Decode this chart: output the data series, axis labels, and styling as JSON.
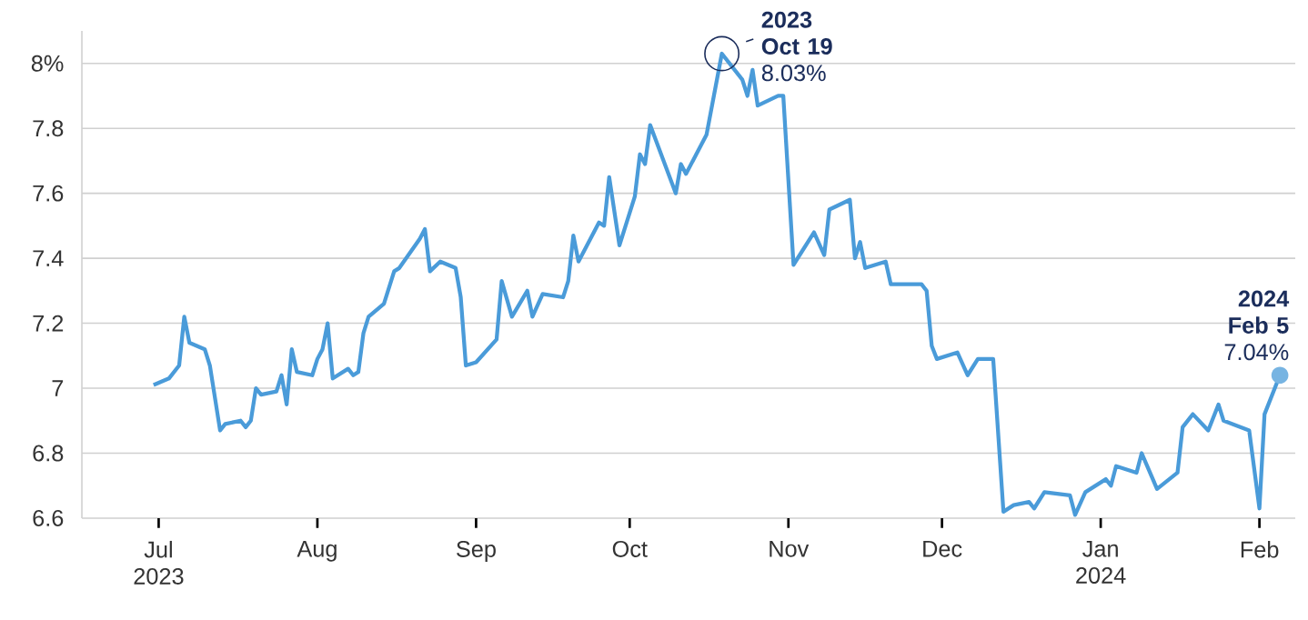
{
  "chart_data": {
    "type": "line",
    "color": "#4a9bd9",
    "line_style": "solid",
    "marker": "none",
    "grid": "y",
    "x": [
      "2023-06-30",
      "2023-07-03",
      "2023-07-05",
      "2023-07-06",
      "2023-07-07",
      "2023-07-10",
      "2023-07-11",
      "2023-07-13",
      "2023-07-14",
      "2023-07-17",
      "2023-07-18",
      "2023-07-19",
      "2023-07-20",
      "2023-07-21",
      "2023-07-24",
      "2023-07-25",
      "2023-07-26",
      "2023-07-27",
      "2023-07-28",
      "2023-07-31",
      "2023-08-01",
      "2023-08-02",
      "2023-08-03",
      "2023-08-04",
      "2023-08-07",
      "2023-08-08",
      "2023-08-09",
      "2023-08-10",
      "2023-08-11",
      "2023-08-14",
      "2023-08-16",
      "2023-08-17",
      "2023-08-21",
      "2023-08-22",
      "2023-08-23",
      "2023-08-25",
      "2023-08-28",
      "2023-08-29",
      "2023-08-30",
      "2023-09-01",
      "2023-09-05",
      "2023-09-06",
      "2023-09-08",
      "2023-09-11",
      "2023-09-12",
      "2023-09-14",
      "2023-09-18",
      "2023-09-19",
      "2023-09-20",
      "2023-09-21",
      "2023-09-25",
      "2023-09-26",
      "2023-09-27",
      "2023-09-29",
      "2023-10-02",
      "2023-10-03",
      "2023-10-04",
      "2023-10-05",
      "2023-10-10",
      "2023-10-11",
      "2023-10-12",
      "2023-10-16",
      "2023-10-19",
      "2023-10-23",
      "2023-10-24",
      "2023-10-25",
      "2023-10-26",
      "2023-10-30",
      "2023-10-31",
      "2023-11-02",
      "2023-11-06",
      "2023-11-08",
      "2023-11-09",
      "2023-11-13",
      "2023-11-14",
      "2023-11-15",
      "2023-11-16",
      "2023-11-20",
      "2023-11-21",
      "2023-11-27",
      "2023-11-28",
      "2023-11-29",
      "2023-11-30",
      "2023-12-04",
      "2023-12-06",
      "2023-12-08",
      "2023-12-11",
      "2023-12-13",
      "2023-12-15",
      "2023-12-18",
      "2023-12-19",
      "2023-12-21",
      "2023-12-26",
      "2023-12-27",
      "2023-12-29",
      "2024-01-02",
      "2024-01-03",
      "2024-01-04",
      "2024-01-08",
      "2024-01-09",
      "2024-01-12",
      "2024-01-16",
      "2024-01-17",
      "2024-01-19",
      "2024-01-22",
      "2024-01-24",
      "2024-01-25",
      "2024-01-30",
      "2024-02-01",
      "2024-02-02",
      "2024-02-05"
    ],
    "values": [
      7.01,
      7.03,
      7.07,
      7.22,
      7.14,
      7.12,
      7.07,
      6.87,
      6.89,
      6.9,
      6.88,
      6.9,
      7.0,
      6.98,
      6.99,
      7.04,
      6.95,
      7.12,
      7.05,
      7.04,
      7.09,
      7.12,
      7.2,
      7.03,
      7.06,
      7.04,
      7.05,
      7.17,
      7.22,
      7.26,
      7.36,
      7.37,
      7.46,
      7.49,
      7.36,
      7.39,
      7.37,
      7.28,
      7.07,
      7.08,
      7.15,
      7.33,
      7.22,
      7.3,
      7.22,
      7.29,
      7.28,
      7.33,
      7.47,
      7.39,
      7.51,
      7.5,
      7.65,
      7.44,
      7.59,
      7.72,
      7.69,
      7.81,
      7.6,
      7.69,
      7.66,
      7.78,
      8.03,
      7.95,
      7.9,
      7.98,
      7.87,
      7.9,
      7.9,
      7.38,
      7.48,
      7.41,
      7.55,
      7.58,
      7.4,
      7.45,
      7.37,
      7.39,
      7.32,
      7.32,
      7.3,
      7.13,
      7.09,
      7.11,
      7.04,
      7.09,
      7.09,
      6.62,
      6.64,
      6.65,
      6.63,
      6.68,
      6.67,
      6.61,
      6.68,
      6.72,
      6.7,
      6.76,
      6.74,
      6.8,
      6.69,
      6.74,
      6.88,
      6.92,
      6.87,
      6.95,
      6.9,
      6.87,
      6.63,
      6.92,
      7.04
    ],
    "xlim": [
      "2023-06-16",
      "2024-02-08"
    ],
    "ylim": [
      6.6,
      8.1
    ],
    "xticks": [
      {
        "value": "2023-07-01",
        "label": "Jul 2023"
      },
      {
        "value": "2023-08-01",
        "label": "Aug"
      },
      {
        "value": "2023-09-01",
        "label": "Sep"
      },
      {
        "value": "2023-10-01",
        "label": "Oct"
      },
      {
        "value": "2023-11-01",
        "label": "Nov"
      },
      {
        "value": "2023-12-01",
        "label": "Dec"
      },
      {
        "value": "2024-01-01",
        "label": "Jan 2024"
      },
      {
        "value": "2024-02-01",
        "label": "Feb"
      }
    ],
    "yticks": [
      6.6,
      6.8,
      7,
      7.2,
      7.4,
      7.6,
      7.8,
      {
        "value": 8,
        "label": "8%"
      }
    ],
    "annotations": [
      {
        "text": "**2023 Oct 19** 8.03%",
        "x": "2023-10-19",
        "y": 8.03
      },
      {
        "text": "**2024 Feb 5** 7.04%",
        "x": "2024-02-05",
        "y": 7.04
      }
    ]
  }
}
